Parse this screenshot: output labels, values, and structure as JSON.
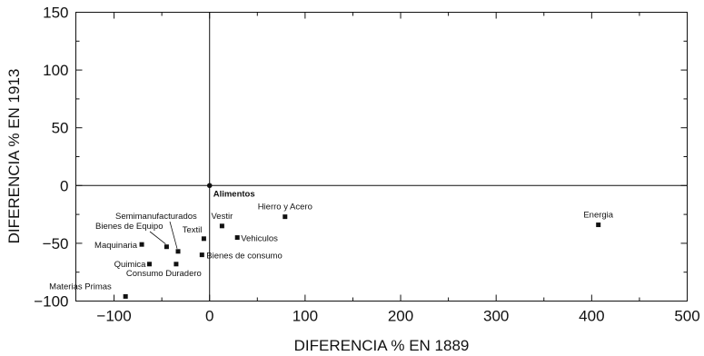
{
  "chart_data": {
    "type": "scatter",
    "title": "",
    "xlabel": "DIFERENCIA % EN 1889",
    "ylabel": "DIFERENCIA % EN 1913",
    "xlim": [
      -140,
      500
    ],
    "ylim": [
      -100,
      150
    ],
    "xticks": [
      -100,
      0,
      100,
      200,
      300,
      400,
      500
    ],
    "yticks": [
      -100,
      -50,
      0,
      50,
      100,
      150
    ],
    "xtick_labels": [
      "−100",
      "0",
      "100",
      "200",
      "300",
      "400",
      "500"
    ],
    "ytick_labels": [
      "−100",
      "−50",
      "0",
      "50",
      "100",
      "150"
    ],
    "grid": false,
    "reference_lines": {
      "x": 0,
      "y": 0
    },
    "points": [
      {
        "label": "Alimentos",
        "x": 0,
        "y": 0
      },
      {
        "label": "Energia",
        "x": 407,
        "y": -34
      },
      {
        "label": "Hierro y Acero",
        "x": 79,
        "y": -27
      },
      {
        "label": "Vestir",
        "x": 13,
        "y": -35
      },
      {
        "label": "Vehiculos",
        "x": 29,
        "y": -45
      },
      {
        "label": "Bienes de consumo",
        "x": -8,
        "y": -60
      },
      {
        "label": "Textil",
        "x": -6,
        "y": -46
      },
      {
        "label": "Semimanufacturados",
        "x": -33,
        "y": -57
      },
      {
        "label": "Bienes de Equipo",
        "x": -45,
        "y": -53
      },
      {
        "label": "Maquinaria",
        "x": -71,
        "y": -51
      },
      {
        "label": "Quimica",
        "x": -63,
        "y": -68
      },
      {
        "label": "Consumo Duradero",
        "x": -35,
        "y": -68
      },
      {
        "label": "Materias Primas",
        "x": -88,
        "y": -96
      }
    ]
  }
}
